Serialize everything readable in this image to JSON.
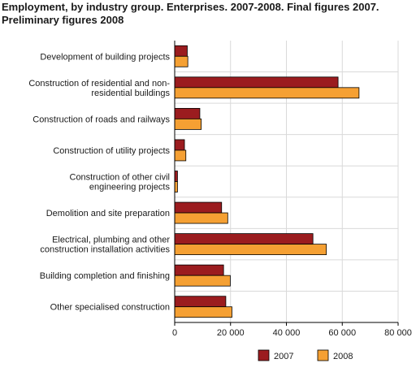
{
  "chart_data": {
    "type": "bar",
    "orientation": "horizontal",
    "title": "Employment, by industry group. Enterprises. 2007-2008. Final figures 2007. Preliminary figures 2008",
    "title_lines": [
      "Employment, by industry group. Enterprises. 2007-2008. Final figures 2007.",
      "Preliminary figures 2008"
    ],
    "xlabel": "",
    "ylabel": "",
    "xlim": [
      0,
      80000
    ],
    "ticks": [
      0,
      20000,
      40000,
      60000,
      80000
    ],
    "tick_labels": [
      "0",
      "20 000",
      "40 000",
      "60 000",
      "80 000"
    ],
    "grid": true,
    "legend_position": "bottom",
    "categories": [
      [
        "Development of building projects"
      ],
      [
        "Construction of residential and non-",
        "residential buildings"
      ],
      [
        "Construction of roads and railways"
      ],
      [
        "Construction of utility projects"
      ],
      [
        "Construction of other civil",
        "engineering projects"
      ],
      [
        "Demolition and site preparation"
      ],
      [
        "Electrical, plumbing and other",
        "construction installation activities"
      ],
      [
        "Building completion and finishing"
      ],
      [
        "Other specialised construction"
      ]
    ],
    "series": [
      {
        "name": "2007",
        "color": "#9b1c1f",
        "values": [
          4500,
          58500,
          9000,
          3500,
          1000,
          16800,
          49500,
          17500,
          18300
        ]
      },
      {
        "name": "2008",
        "color": "#f5a033",
        "values": [
          4700,
          66000,
          9500,
          4000,
          1000,
          19000,
          54300,
          19900,
          20500
        ]
      }
    ]
  }
}
